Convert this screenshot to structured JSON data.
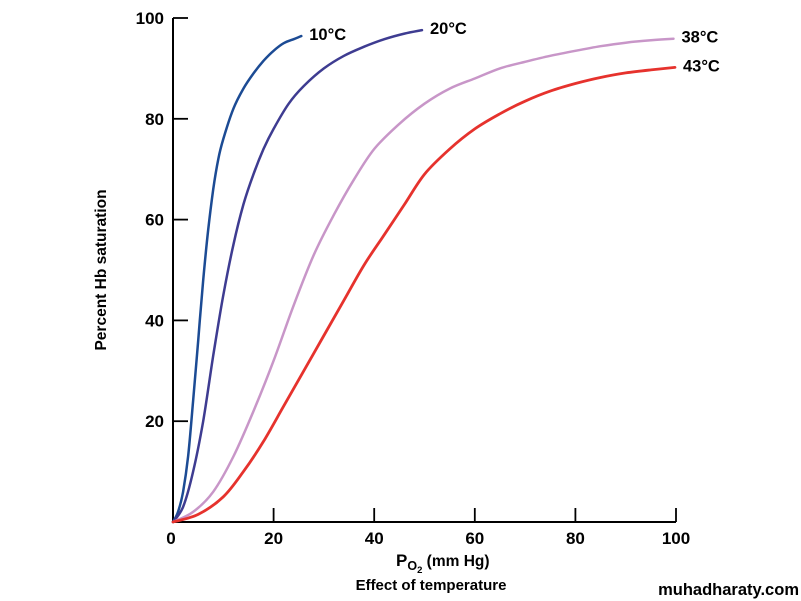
{
  "chart": {
    "y_axis_title": "Percent Hb saturation",
    "x_axis_title_prefix": "P",
    "x_axis_title_sub": "O",
    "x_axis_title_subsub": "2",
    "x_axis_title_suffix": " (mm Hg)",
    "caption": "Effect of temperature",
    "watermark": "muhadharaty.com",
    "axis_color": "#000000",
    "background_color": "#ffffff"
  },
  "chart_data": {
    "type": "line",
    "title": "",
    "xlabel": "PO2 (mm Hg)",
    "ylabel": "Percent Hb saturation",
    "caption": "Effect of temperature",
    "xlim": [
      0,
      100
    ],
    "ylim": [
      0,
      100
    ],
    "x_ticks": [
      0,
      20,
      40,
      60,
      80,
      100
    ],
    "y_ticks": [
      20,
      40,
      60,
      80,
      100
    ],
    "grid": false,
    "legend_position": "labels-at-curve-ends",
    "series": [
      {
        "name": "10°C",
        "color": "#1c4b94",
        "stroke_width": 2.5,
        "points": [
          [
            0,
            0
          ],
          [
            1,
            2
          ],
          [
            2,
            6
          ],
          [
            3,
            13
          ],
          [
            4,
            24
          ],
          [
            5,
            36
          ],
          [
            6,
            48
          ],
          [
            7,
            58
          ],
          [
            8,
            66
          ],
          [
            9,
            72
          ],
          [
            10,
            76
          ],
          [
            12,
            82
          ],
          [
            14,
            86
          ],
          [
            16,
            89
          ],
          [
            18,
            91.5
          ],
          [
            20,
            93.5
          ],
          [
            22,
            95
          ],
          [
            24,
            95.8
          ],
          [
            25.5,
            96.4
          ]
        ]
      },
      {
        "name": "20°C",
        "color": "#3e3c91",
        "stroke_width": 2.5,
        "points": [
          [
            0,
            0
          ],
          [
            2,
            3
          ],
          [
            4,
            10
          ],
          [
            6,
            20
          ],
          [
            8,
            33
          ],
          [
            10,
            45
          ],
          [
            12,
            55
          ],
          [
            14,
            63
          ],
          [
            16,
            69
          ],
          [
            18,
            74
          ],
          [
            20,
            78
          ],
          [
            23,
            83
          ],
          [
            26,
            86.5
          ],
          [
            30,
            90
          ],
          [
            34,
            92.5
          ],
          [
            38,
            94.3
          ],
          [
            42,
            95.8
          ],
          [
            46,
            96.9
          ],
          [
            49.5,
            97.6
          ]
        ]
      },
      {
        "name": "38°C",
        "color": "#c896c8",
        "stroke_width": 2.5,
        "points": [
          [
            0,
            0
          ],
          [
            4,
            2
          ],
          [
            8,
            6
          ],
          [
            12,
            13
          ],
          [
            16,
            22
          ],
          [
            20,
            32
          ],
          [
            24,
            43
          ],
          [
            28,
            53
          ],
          [
            32,
            61
          ],
          [
            36,
            68
          ],
          [
            40,
            74
          ],
          [
            45,
            79
          ],
          [
            50,
            83
          ],
          [
            55,
            86
          ],
          [
            60,
            88
          ],
          [
            65,
            90
          ],
          [
            70,
            91.3
          ],
          [
            75,
            92.5
          ],
          [
            80,
            93.5
          ],
          [
            85,
            94.4
          ],
          [
            90,
            95.1
          ],
          [
            95,
            95.6
          ],
          [
            99.5,
            95.9
          ]
        ]
      },
      {
        "name": "43°C",
        "color": "#e6322d",
        "stroke_width": 2.8,
        "points": [
          [
            0,
            0
          ],
          [
            5,
            1.5
          ],
          [
            10,
            5
          ],
          [
            14,
            10
          ],
          [
            18,
            16
          ],
          [
            22,
            23
          ],
          [
            26,
            30
          ],
          [
            30,
            37
          ],
          [
            34,
            44
          ],
          [
            38,
            51
          ],
          [
            42,
            57
          ],
          [
            46,
            63
          ],
          [
            50,
            69
          ],
          [
            55,
            74
          ],
          [
            60,
            78
          ],
          [
            65,
            81
          ],
          [
            70,
            83.5
          ],
          [
            75,
            85.5
          ],
          [
            80,
            87
          ],
          [
            85,
            88.2
          ],
          [
            90,
            89.1
          ],
          [
            95,
            89.7
          ],
          [
            99.8,
            90.2
          ]
        ]
      }
    ]
  }
}
